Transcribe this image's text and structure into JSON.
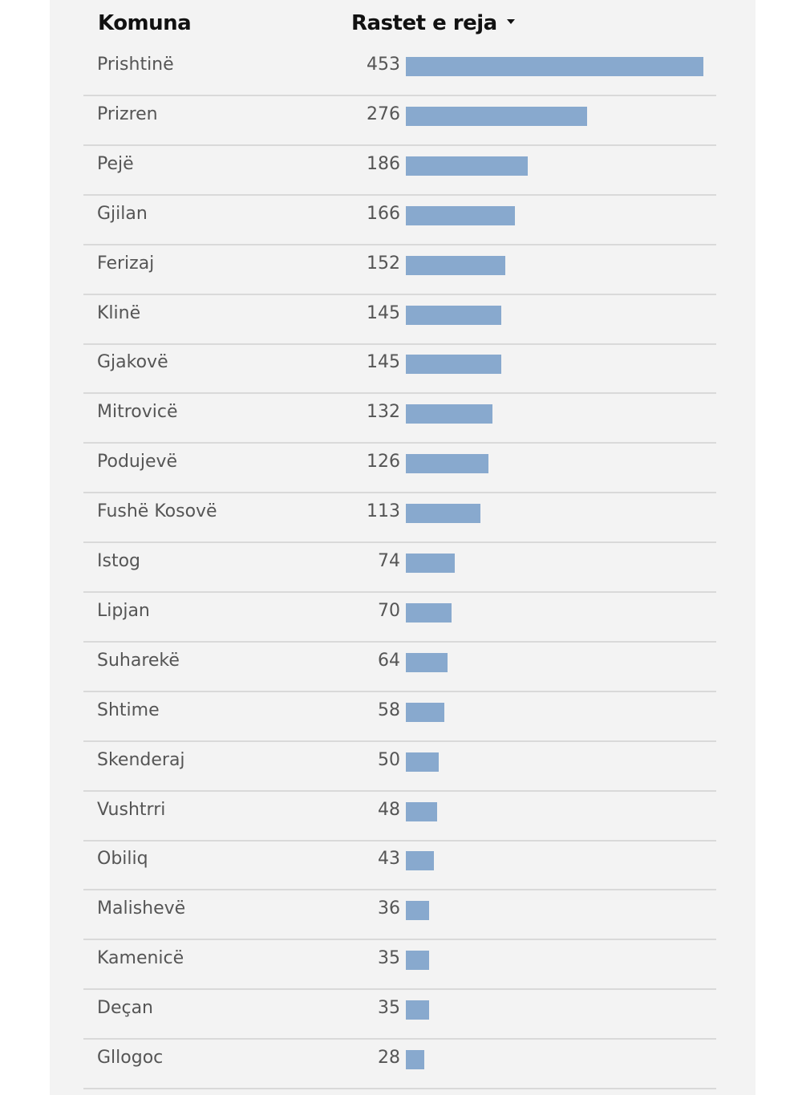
{
  "chart_data": {
    "type": "bar",
    "orientation": "horizontal",
    "columns": [
      "Komuna",
      "Rastet e reja"
    ],
    "sort_indicator": "caret-down-icon",
    "bar_color": "#88a9ce",
    "categories": [
      "Prishtinë",
      "Prizren",
      "Pejë",
      "Gjilan",
      "Ferizaj",
      "Klinë",
      "Gjakovë",
      "Mitrovicë",
      "Podujevë",
      "Fushë Kosovë",
      "Istog",
      "Lipjan",
      "Suharekë",
      "Shtime",
      "Skenderaj",
      "Vushtrri",
      "Obiliq",
      "Malishevë",
      "Kamenicë",
      "Deçan",
      "Gllogoc"
    ],
    "values": [
      453,
      276,
      186,
      166,
      152,
      145,
      145,
      132,
      126,
      113,
      74,
      70,
      64,
      58,
      50,
      48,
      43,
      36,
      35,
      35,
      28
    ],
    "xlim": [
      0,
      453
    ]
  }
}
